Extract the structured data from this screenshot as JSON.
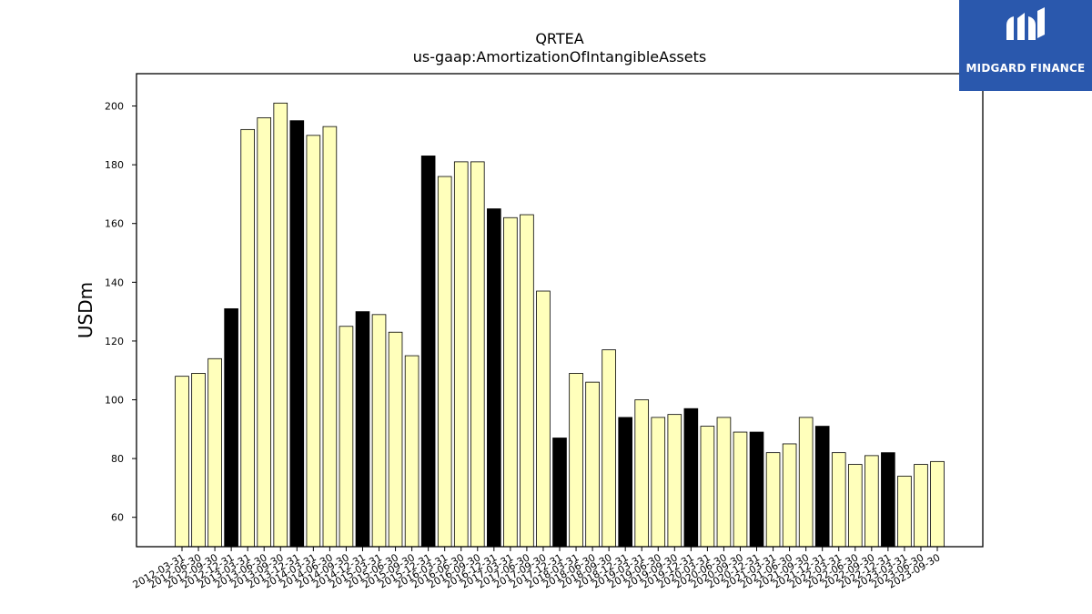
{
  "brand": {
    "name": "MIDGARD FINANCE",
    "logo_icon": "midgard-logo-icon",
    "background": "#2a58ad"
  },
  "chart_data": {
    "type": "bar",
    "title": "QRTEA",
    "subtitle": "us-gaap:AmortizationOfIntangibleAssets",
    "xlabel": "",
    "ylabel": "USDm",
    "ylim": [
      50,
      211
    ],
    "yticks": [
      60,
      80,
      100,
      120,
      140,
      160,
      180,
      200
    ],
    "grid": false,
    "colors": {
      "quarter": "#ffffbb",
      "year_end": "#000000",
      "edge": "#000000"
    },
    "categories": [
      "2012-03-31",
      "2012-06-30",
      "2012-09-30",
      "2012-12-31",
      "2013-03-31",
      "2013-06-30",
      "2013-09-30",
      "2013-12-31",
      "2014-03-31",
      "2014-06-30",
      "2014-09-30",
      "2014-12-31",
      "2015-03-31",
      "2015-06-30",
      "2015-09-30",
      "2015-12-31",
      "2016-03-31",
      "2016-06-30",
      "2016-09-30",
      "2016-12-31",
      "2017-03-31",
      "2017-06-30",
      "2017-09-30",
      "2017-12-31",
      "2018-03-31",
      "2018-06-30",
      "2018-09-30",
      "2018-12-31",
      "2019-03-31",
      "2019-06-30",
      "2019-09-30",
      "2019-12-31",
      "2020-03-31",
      "2020-06-30",
      "2020-09-30",
      "2020-12-31",
      "2021-03-31",
      "2021-06-30",
      "2021-09-30",
      "2021-12-31",
      "2022-03-31",
      "2022-06-30",
      "2022-09-30",
      "2022-12-31",
      "2023-03-31",
      "2023-06-30",
      "2023-09-30"
    ],
    "values": [
      108,
      109,
      114,
      131,
      192,
      196,
      201,
      195,
      190,
      193,
      125,
      130,
      129,
      123,
      115,
      183,
      176,
      181,
      181,
      165,
      162,
      163,
      137,
      87,
      109,
      106,
      117,
      94,
      100,
      94,
      95,
      97,
      91,
      94,
      89,
      89,
      82,
      85,
      94,
      91,
      82,
      78,
      81,
      82,
      74,
      78,
      79
    ],
    "year_end": [
      false,
      false,
      false,
      true,
      false,
      false,
      false,
      true,
      false,
      false,
      false,
      true,
      false,
      false,
      false,
      true,
      false,
      false,
      false,
      true,
      false,
      false,
      false,
      true,
      false,
      false,
      false,
      true,
      false,
      false,
      false,
      true,
      false,
      false,
      false,
      true,
      false,
      false,
      false,
      true,
      false,
      false,
      false,
      true,
      false,
      false,
      false
    ]
  }
}
